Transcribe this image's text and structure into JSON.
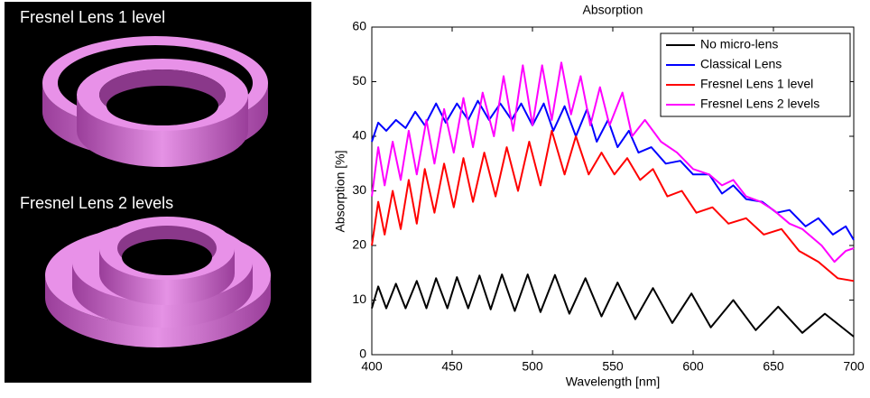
{
  "left_panel": {
    "labels": [
      "Fresnel Lens 1 level",
      "Fresnel Lens 2 levels"
    ]
  },
  "chart_data": {
    "type": "line",
    "title": "Absorption",
    "xlabel": "Wavelength [nm]",
    "ylabel": "Absorption [%]",
    "xlim": [
      400,
      700
    ],
    "xticks": [
      400,
      450,
      500,
      550,
      600,
      650,
      700
    ],
    "ylim": [
      0,
      60
    ],
    "yticks": [
      0,
      10,
      20,
      30,
      40,
      50,
      60
    ],
    "legend": "upper right",
    "series": [
      {
        "name": "No micro-lens",
        "color": "#000000",
        "x": [
          400,
          404,
          409,
          415,
          421,
          428,
          434,
          440,
          447,
          453,
          460,
          467,
          474,
          481,
          489,
          497,
          505,
          514,
          523,
          533,
          543,
          553,
          564,
          575,
          587,
          599,
          611,
          625,
          639,
          653,
          668,
          682,
          700
        ],
        "values": [
          8.5,
          12.5,
          8.5,
          13,
          8.5,
          13.5,
          8.5,
          14,
          8.5,
          14.2,
          8.5,
          14.5,
          8.3,
          14.7,
          8,
          14.7,
          7.8,
          14.6,
          7.5,
          14,
          7,
          13.2,
          6.5,
          12.2,
          5.8,
          11.2,
          5,
          10,
          4.5,
          8.8,
          4,
          7.5,
          3.3
        ]
      },
      {
        "name": "Classical Lens",
        "color": "#0000ff",
        "x": [
          400,
          404,
          409,
          415,
          421,
          427,
          433,
          440,
          446,
          453,
          460,
          466,
          473,
          480,
          487,
          493,
          500,
          507,
          513,
          520,
          527,
          534,
          540,
          547,
          553,
          560,
          566,
          574,
          583,
          592,
          600,
          610,
          618,
          625,
          633,
          643,
          652,
          660,
          670,
          678,
          687,
          695,
          700
        ],
        "values": [
          39,
          42.5,
          41,
          43,
          41.5,
          44.5,
          42,
          46,
          42.5,
          46,
          43,
          46.5,
          43,
          46,
          43,
          46,
          42,
          46,
          41,
          45.5,
          40,
          45,
          39,
          43,
          38,
          41,
          37,
          38,
          35,
          35.5,
          33,
          33,
          29.5,
          31,
          28.5,
          28,
          26,
          26.5,
          23.5,
          25,
          22,
          23.5,
          21
        ]
      },
      {
        "name": "Fresnel Lens 1 level",
        "color": "#ff0000",
        "x": [
          400,
          404,
          408,
          413,
          418,
          423,
          428,
          433,
          439,
          445,
          451,
          457,
          463,
          470,
          477,
          484,
          491,
          498,
          505,
          512,
          520,
          527,
          535,
          543,
          551,
          559,
          567,
          575,
          584,
          593,
          602,
          612,
          622,
          633,
          644,
          655,
          666,
          678,
          690,
          700
        ],
        "values": [
          20,
          28,
          22,
          30,
          23,
          32,
          24,
          34,
          26,
          35,
          27,
          36,
          28,
          37,
          29,
          38,
          30,
          39,
          31,
          41,
          33,
          40,
          33,
          37,
          33,
          36,
          32,
          34,
          29,
          30,
          26,
          27,
          24,
          25,
          22,
          23,
          19,
          17,
          14,
          13.5
        ]
      },
      {
        "name": "Fresnel Lens 2 levels",
        "color": "#ff00ff",
        "x": [
          400,
          404,
          408,
          413,
          418,
          423,
          428,
          434,
          439,
          445,
          451,
          457,
          463,
          469,
          476,
          482,
          488,
          494,
          500,
          506,
          512,
          518,
          524,
          530,
          536,
          542,
          548,
          556,
          562,
          570,
          580,
          590,
          600,
          610,
          618,
          625,
          633,
          642,
          650,
          660,
          668,
          680,
          688,
          695,
          700
        ],
        "values": [
          29,
          38,
          31,
          39,
          32,
          41,
          33,
          43,
          35,
          45,
          37,
          47,
          38,
          48,
          40,
          51,
          41,
          53,
          42,
          53,
          43,
          53.5,
          44,
          51,
          42,
          49,
          42,
          48,
          40,
          43,
          39,
          37,
          34,
          33,
          31,
          32,
          29,
          28,
          26.5,
          24,
          23,
          20,
          17,
          19,
          19.5
        ]
      }
    ]
  }
}
